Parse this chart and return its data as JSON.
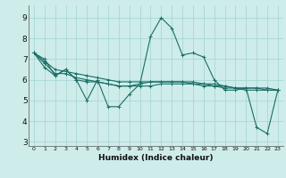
{
  "title": "",
  "xlabel": "Humidex (Indice chaleur)",
  "ylabel": "",
  "bg_color": "#ceecea",
  "grid_color": "#a8d8d4",
  "line_color": "#1a6e65",
  "xlim": [
    -0.5,
    23.5
  ],
  "ylim": [
    2.8,
    9.6
  ],
  "yticks": [
    3,
    4,
    5,
    6,
    7,
    8,
    9
  ],
  "xticks": [
    0,
    1,
    2,
    3,
    4,
    5,
    6,
    7,
    8,
    9,
    10,
    11,
    12,
    13,
    14,
    15,
    16,
    17,
    18,
    19,
    20,
    21,
    22,
    23
  ],
  "series": [
    [
      7.3,
      7.0,
      6.2,
      6.5,
      6.0,
      5.0,
      6.0,
      4.7,
      4.7,
      5.3,
      5.8,
      8.1,
      9.0,
      8.5,
      7.2,
      7.3,
      7.1,
      6.0,
      5.5,
      5.5,
      5.6,
      3.7,
      3.4,
      5.5
    ],
    [
      7.3,
      6.6,
      6.2,
      6.5,
      6.0,
      5.9,
      5.9,
      5.8,
      5.7,
      5.7,
      5.8,
      5.9,
      5.9,
      5.9,
      5.9,
      5.9,
      5.8,
      5.8,
      5.7,
      5.6,
      5.6,
      5.6,
      5.6,
      5.5
    ],
    [
      7.3,
      6.8,
      6.3,
      6.3,
      6.1,
      6.0,
      5.9,
      5.8,
      5.7,
      5.7,
      5.7,
      5.7,
      5.8,
      5.8,
      5.8,
      5.8,
      5.8,
      5.7,
      5.7,
      5.6,
      5.6,
      5.6,
      5.5,
      5.5
    ],
    [
      7.3,
      6.9,
      6.5,
      6.4,
      6.3,
      6.2,
      6.1,
      6.0,
      5.9,
      5.9,
      5.9,
      5.9,
      5.9,
      5.9,
      5.9,
      5.8,
      5.7,
      5.7,
      5.6,
      5.6,
      5.5,
      5.5,
      5.5,
      5.5
    ]
  ]
}
